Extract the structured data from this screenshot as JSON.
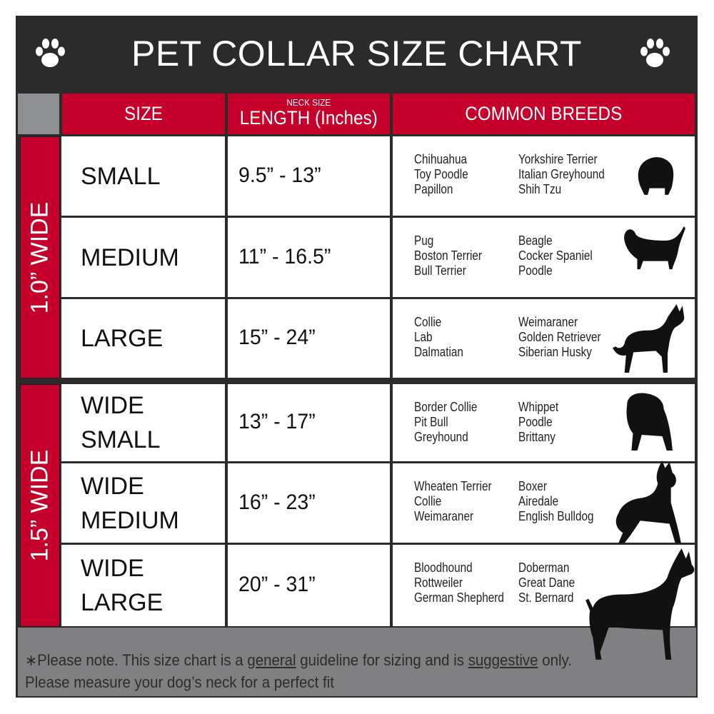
{
  "title": "PET COLLAR SIZE CHART",
  "icons": {
    "left": "paw-print-icon",
    "right": "paw-print-icon"
  },
  "colors": {
    "header_red": "#c4002b",
    "frame_dark": "#2b2b2b",
    "footer_grey": "#808083"
  },
  "headers": {
    "size": "SIZE",
    "length_small": "NECK SIZE",
    "length": "LENGTH (Inches)",
    "breeds": "COMMON BREEDS"
  },
  "groups": [
    {
      "label": "1.0” WIDE"
    },
    {
      "label": "1.5” WIDE"
    }
  ],
  "rows": [
    {
      "size": [
        "SMALL"
      ],
      "length": "9.5” - 13”",
      "breeds_a": [
        "Chihuahua",
        "Toy Poodle",
        "Papillon"
      ],
      "breeds_b": [
        "Yorkshire Terrier",
        "Italian Greyhound",
        "Shih Tzu"
      ],
      "icon": "small-dog-silhouette-icon"
    },
    {
      "size": [
        "MEDIUM"
      ],
      "length": "11” - 16.5”",
      "breeds_a": [
        "Pug",
        "Boston Terrier",
        "Bull Terrier"
      ],
      "breeds_b": [
        "Beagle",
        "Cocker Spaniel",
        "Poodle"
      ],
      "icon": "dachshund-silhouette-icon"
    },
    {
      "size": [
        "LARGE"
      ],
      "length": "15” - 24”",
      "breeds_a": [
        "Collie",
        "Lab",
        "Dalmatian"
      ],
      "breeds_b": [
        "Weimaraner",
        "Golden Retriever",
        "Siberian Husky"
      ],
      "icon": "shepherd-silhouette-icon"
    },
    {
      "size": [
        "WIDE",
        "SMALL"
      ],
      "length": "13” - 17”",
      "breeds_a": [
        "Border Collie",
        "Pit Bull",
        "Greyhound"
      ],
      "breeds_b": [
        "Whippet",
        "Poodle",
        "Brittany"
      ],
      "icon": "bulldog-silhouette-icon"
    },
    {
      "size": [
        "WIDE",
        "MEDIUM"
      ],
      "length": "16” - 23”",
      "breeds_a": [
        "Wheaten Terrier",
        "Collie",
        "Weimaraner"
      ],
      "breeds_b": [
        "Boxer",
        "Airedale",
        "English Bulldog"
      ],
      "icon": "pitbull-silhouette-icon"
    },
    {
      "size": [
        "WIDE",
        "LARGE"
      ],
      "length": "20” - 31”",
      "breeds_a": [
        "Bloodhound",
        "Rottweiler",
        "German Shepherd"
      ],
      "breeds_b": [
        "Doberman",
        "Great Dane",
        "St. Bernard"
      ],
      "icon": "doberman-silhouette-icon"
    }
  ],
  "footer": {
    "line1_a": "∗Please note. This size chart is a ",
    "line1_u1": "general",
    "line1_b": " guideline for sizing and is ",
    "line1_u2": "suggestive",
    "line1_c": " only.",
    "line2": "Please measure your dog’s neck for a perfect fit"
  }
}
